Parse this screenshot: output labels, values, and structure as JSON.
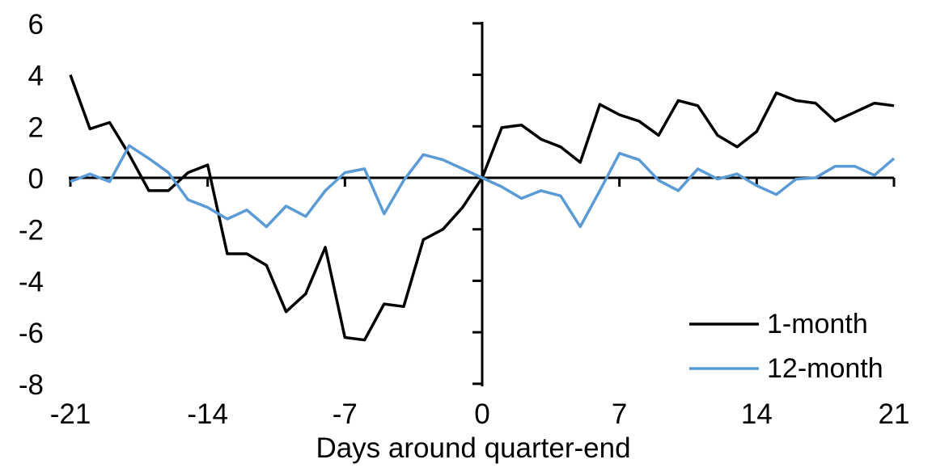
{
  "chart_data": {
    "type": "line",
    "title": "",
    "xlabel": "Days around quarter-end",
    "ylabel": "",
    "xlim": [
      -21,
      21
    ],
    "ylim": [
      -8,
      6
    ],
    "grid": false,
    "legend_position": "inside-lower-right",
    "x_ticks": [
      -21,
      -14,
      -7,
      0,
      7,
      14,
      21
    ],
    "y_ticks": [
      6,
      4,
      2,
      0,
      -2,
      -4,
      -6,
      -8
    ],
    "x": [
      -21,
      -20,
      -19,
      -18,
      -17,
      -16,
      -15,
      -14,
      -13,
      -12,
      -11,
      -10,
      -9,
      -8,
      -7,
      -6,
      -5,
      -4,
      -3,
      -2,
      -1,
      0,
      1,
      2,
      3,
      4,
      5,
      6,
      7,
      8,
      9,
      10,
      11,
      12,
      13,
      14,
      15,
      16,
      17,
      18,
      19,
      20,
      21
    ],
    "series": [
      {
        "name": "1-month",
        "color": "#000000",
        "values": [
          4.0,
          1.9,
          2.15,
          0.9,
          -0.5,
          -0.5,
          0.2,
          0.5,
          -2.95,
          -2.95,
          -3.4,
          -5.2,
          -4.5,
          -2.7,
          -6.2,
          -6.3,
          -4.9,
          -5.0,
          -2.4,
          -2.0,
          -1.15,
          0.0,
          1.95,
          2.05,
          1.5,
          1.2,
          0.6,
          2.85,
          2.45,
          2.2,
          1.65,
          3.0,
          2.8,
          1.65,
          1.2,
          1.8,
          3.3,
          3.0,
          2.9,
          2.2,
          2.55,
          2.9,
          2.8
        ]
      },
      {
        "name": "12-month",
        "color": "#5B9BD5",
        "values": [
          -0.15,
          0.15,
          -0.15,
          1.25,
          0.75,
          0.2,
          -0.85,
          -1.15,
          -1.6,
          -1.25,
          -1.9,
          -1.1,
          -1.5,
          -0.5,
          0.2,
          0.35,
          -1.4,
          -0.1,
          0.9,
          0.7,
          0.35,
          0.0,
          -0.35,
          -0.8,
          -0.5,
          -0.7,
          -1.9,
          -0.5,
          0.95,
          0.7,
          -0.1,
          -0.5,
          0.35,
          -0.05,
          0.15,
          -0.3,
          -0.65,
          -0.05,
          0.0,
          0.45,
          0.45,
          0.1,
          0.75
        ]
      }
    ],
    "axis_color": "#000000",
    "text_color": "#000000"
  }
}
